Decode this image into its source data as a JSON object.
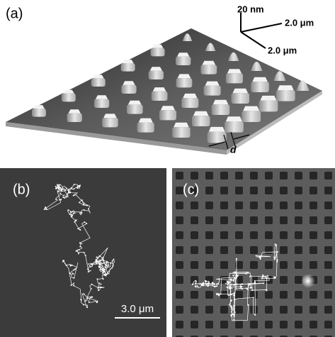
{
  "panels": [
    {
      "label": "(a)",
      "scale_bar": {
        "z": "20 nm",
        "x": "2.0 μm",
        "y": "2.0 μm"
      },
      "spacing_label": "d"
    },
    {
      "label": "(b)",
      "scale_bar": "3.0 μm"
    },
    {
      "label": "(c)"
    }
  ]
}
